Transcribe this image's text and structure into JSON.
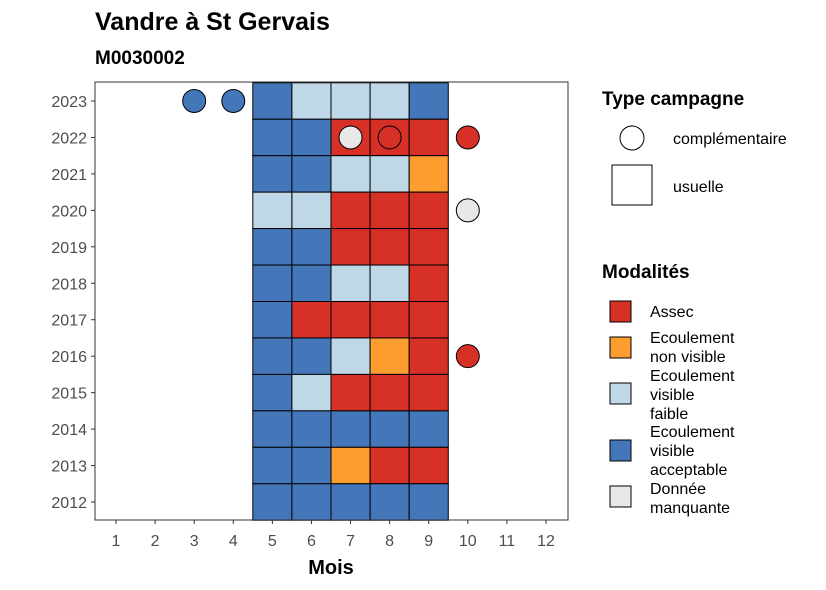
{
  "chart_data": {
    "type": "heatmap",
    "title": "Vandre à St Gervais",
    "subtitle": "M0030002",
    "xlabel": "Mois",
    "ylabel": "",
    "x_ticks": [
      1,
      2,
      3,
      4,
      5,
      6,
      7,
      8,
      9,
      10,
      11,
      12
    ],
    "y_ticks": [
      2023,
      2022,
      2021,
      2020,
      2019,
      2018,
      2017,
      2016,
      2015,
      2014,
      2013,
      2012
    ],
    "xlim": [
      1,
      12
    ],
    "ylim": [
      2012,
      2023
    ],
    "grid": false,
    "legend_position": "right",
    "colors": {
      "Assec": "#d73027",
      "Ecoulement non visible": "#fd9c2f",
      "Ecoulement visible faible": "#bfd8e8",
      "Ecoulement visible acceptable": "#4477b9",
      "Donnée manquante": "#e8e8e8"
    },
    "legend_campagne": {
      "title": "Type campagne",
      "items": [
        {
          "shape": "circle",
          "label": "complémentaire"
        },
        {
          "shape": "square",
          "label": "usuelle"
        }
      ]
    },
    "legend_modalites": {
      "title": "Modalités",
      "items": [
        {
          "key": "Assec",
          "lines": [
            "Assec"
          ]
        },
        {
          "key": "Ecoulement non visible",
          "lines": [
            "Ecoulement",
            "non visible"
          ]
        },
        {
          "key": "Ecoulement visible faible",
          "lines": [
            "Ecoulement",
            "visible",
            "faible"
          ]
        },
        {
          "key": "Ecoulement visible acceptable",
          "lines": [
            "Ecoulement",
            "visible",
            "acceptable"
          ]
        },
        {
          "key": "Donnée manquante",
          "lines": [
            "Donnée",
            "manquante"
          ]
        }
      ]
    },
    "usuelle": [
      {
        "year": 2023,
        "values": {
          "5": "Ecoulement visible acceptable",
          "6": "Ecoulement visible faible",
          "7": "Ecoulement visible faible",
          "8": "Ecoulement visible faible",
          "9": "Ecoulement visible acceptable"
        }
      },
      {
        "year": 2022,
        "values": {
          "5": "Ecoulement visible acceptable",
          "6": "Ecoulement visible acceptable",
          "7": "Assec",
          "8": "Assec",
          "9": "Assec"
        }
      },
      {
        "year": 2021,
        "values": {
          "5": "Ecoulement visible acceptable",
          "6": "Ecoulement visible acceptable",
          "7": "Ecoulement visible faible",
          "8": "Ecoulement visible faible",
          "9": "Ecoulement non visible"
        }
      },
      {
        "year": 2020,
        "values": {
          "5": "Ecoulement visible faible",
          "6": "Ecoulement visible faible",
          "7": "Assec",
          "8": "Assec",
          "9": "Assec"
        }
      },
      {
        "year": 2019,
        "values": {
          "5": "Ecoulement visible acceptable",
          "6": "Ecoulement visible acceptable",
          "7": "Assec",
          "8": "Assec",
          "9": "Assec"
        }
      },
      {
        "year": 2018,
        "values": {
          "5": "Ecoulement visible acceptable",
          "6": "Ecoulement visible acceptable",
          "7": "Ecoulement visible faible",
          "8": "Ecoulement visible faible",
          "9": "Assec"
        }
      },
      {
        "year": 2017,
        "values": {
          "5": "Ecoulement visible acceptable",
          "6": "Assec",
          "7": "Assec",
          "8": "Assec",
          "9": "Assec"
        }
      },
      {
        "year": 2016,
        "values": {
          "5": "Ecoulement visible acceptable",
          "6": "Ecoulement visible acceptable",
          "7": "Ecoulement visible faible",
          "8": "Ecoulement non visible",
          "9": "Assec"
        }
      },
      {
        "year": 2015,
        "values": {
          "5": "Ecoulement visible acceptable",
          "6": "Ecoulement visible faible",
          "7": "Assec",
          "8": "Assec",
          "9": "Assec"
        }
      },
      {
        "year": 2014,
        "values": {
          "5": "Ecoulement visible acceptable",
          "6": "Ecoulement visible acceptable",
          "7": "Ecoulement visible acceptable",
          "8": "Ecoulement visible acceptable",
          "9": "Ecoulement visible acceptable"
        }
      },
      {
        "year": 2013,
        "values": {
          "5": "Ecoulement visible acceptable",
          "6": "Ecoulement visible acceptable",
          "7": "Ecoulement non visible",
          "8": "Assec",
          "9": "Assec"
        }
      },
      {
        "year": 2012,
        "values": {
          "5": "Ecoulement visible acceptable",
          "6": "Ecoulement visible acceptable",
          "7": "Ecoulement visible acceptable",
          "8": "Ecoulement visible acceptable",
          "9": "Ecoulement visible acceptable"
        }
      }
    ],
    "complementaire": [
      {
        "year": 2023,
        "month": 3,
        "value": "Ecoulement visible acceptable"
      },
      {
        "year": 2023,
        "month": 4,
        "value": "Ecoulement visible acceptable"
      },
      {
        "year": 2022,
        "month": 7,
        "value": "Donnée manquante"
      },
      {
        "year": 2022,
        "month": 8,
        "value": "Assec"
      },
      {
        "year": 2022,
        "month": 10,
        "value": "Assec"
      },
      {
        "year": 2020,
        "month": 10,
        "value": "Donnée manquante"
      },
      {
        "year": 2016,
        "month": 10,
        "value": "Assec"
      }
    ]
  }
}
